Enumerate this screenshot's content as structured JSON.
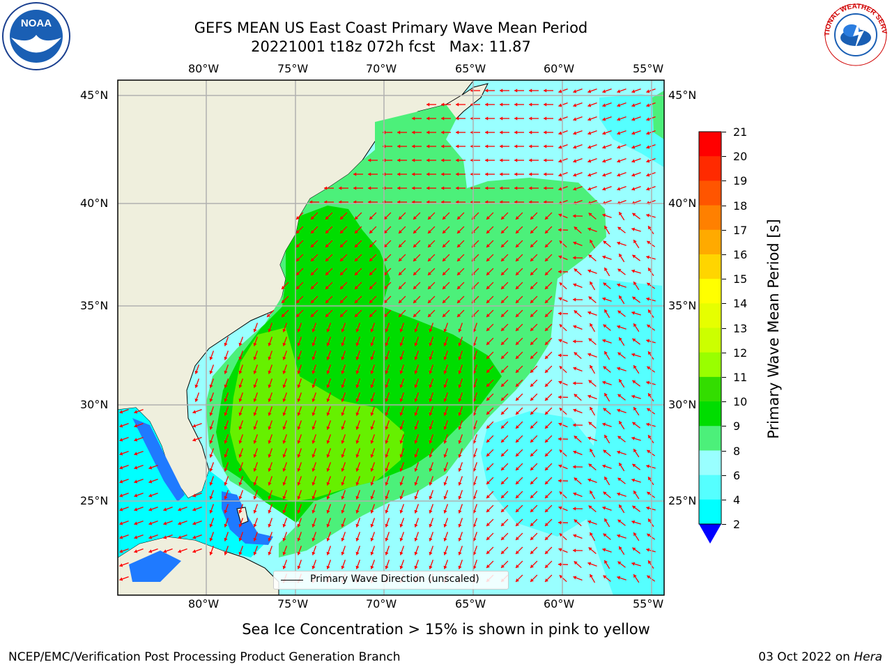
{
  "header": {
    "title_line1": "GEFS MEAN US East Coast Primary Wave Mean Period",
    "title_line2": "20221001 t18z 072h fcst   Max: 11.87"
  },
  "logos": {
    "left": {
      "text": "NOAA"
    },
    "right": {
      "text": "NATIONAL WEATHER SERVICE"
    }
  },
  "map": {
    "lon_labels": [
      "80°W",
      "75°W",
      "70°W",
      "65°W",
      "60°W",
      "55°W"
    ],
    "lat_labels": [
      "45°N",
      "40°N",
      "35°N",
      "30°N",
      "25°N"
    ],
    "legend_label": "Primary Wave Direction (unscaled)",
    "colors": {
      "land": "#efefdd",
      "arrow": "#ff0000",
      "grid": "#b0b0b0"
    }
  },
  "colorbar": {
    "label": "Primary Wave Mean Period [s]",
    "ticks": [
      "21",
      "20",
      "19",
      "18",
      "17",
      "16",
      "15",
      "14",
      "13",
      "12",
      "11",
      "10",
      "9",
      "8",
      "6",
      "4",
      "2"
    ],
    "colors": [
      "#ff0000",
      "#ff2a00",
      "#ff5500",
      "#ff8000",
      "#ffaa00",
      "#ffd500",
      "#ffff00",
      "#e6ff00",
      "#ccff00",
      "#99ff00",
      "#33dd00",
      "#00dd00",
      "#4cf07a",
      "#99ffff",
      "#55ffff",
      "#00ffff",
      "#0088ff"
    ],
    "extend_color": "#0000ff"
  },
  "footer": {
    "note": "Sea Ice Concentration > 15% is shown in pink to yellow",
    "credit": "NCEP/EMC/Verification Post Processing Product Generation Branch",
    "date": "03 Oct 2022 on ",
    "machine": "Hera"
  }
}
